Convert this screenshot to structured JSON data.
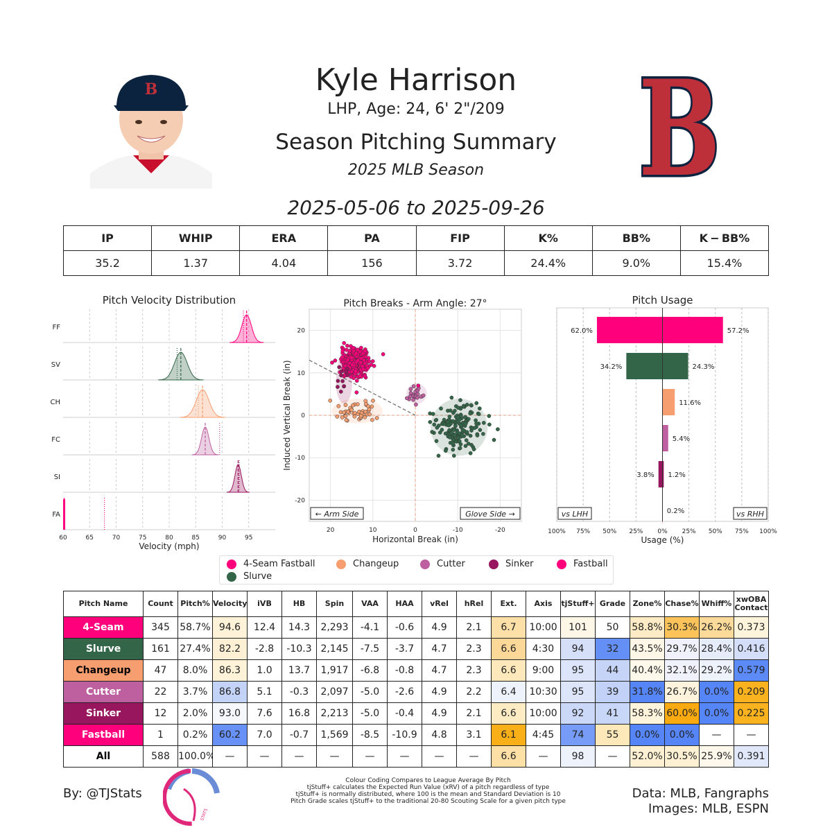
{
  "header": {
    "player_name": "Kyle Harrison",
    "player_info": "LHP, Age: 24, 6' 2\"/209",
    "title": "Season Pitching Summary",
    "season": "2025 MLB Season",
    "date_range": "2025-05-06 to 2025-09-26",
    "team_logo_letter": "B"
  },
  "colors": {
    "4-Seam": "#FF007D",
    "Slurve": "#336648",
    "Changeup": "#F79E70",
    "Cutter": "#BE5FA0",
    "Sinker": "#98165D",
    "Fastball": "#FF007D"
  },
  "season_stats": {
    "headers": [
      "IP",
      "WHIP",
      "ERA",
      "PA",
      "FIP",
      "K%",
      "BB%",
      "K − BB%"
    ],
    "values": [
      "35.2",
      "1.37",
      "4.04",
      "156",
      "3.72",
      "24.4%",
      "9.0%",
      "15.4%"
    ]
  },
  "chart_data": [
    {
      "type": "area",
      "title": "Pitch Velocity Distribution",
      "xlabel": "Velocity (mph)",
      "xticks": [
        "60",
        "65",
        "70",
        "75",
        "80",
        "85",
        "90",
        "95"
      ],
      "xlim": [
        60,
        100
      ],
      "rows": [
        {
          "label": "FF",
          "color": "#FF007D",
          "center": 94.6,
          "spread": 0.9,
          "league_avg": 94.0
        },
        {
          "label": "SV",
          "color": "#336648",
          "center": 82.2,
          "spread": 1.2,
          "league_avg": 81.5
        },
        {
          "label": "CH",
          "color": "#F79E70",
          "center": 86.3,
          "spread": 1.2,
          "league_avg": 85.5
        },
        {
          "label": "FC",
          "color": "#BE5FA0",
          "center": 86.8,
          "spread": 0.7,
          "league_avg": 89.5
        },
        {
          "label": "SI",
          "color": "#98165D",
          "center": 93.0,
          "spread": 0.6,
          "league_avg": 93.2
        },
        {
          "label": "FA",
          "color": "#FF007D",
          "center": 60.2,
          "spread": 0.2,
          "league_avg": 67.8
        }
      ]
    },
    {
      "type": "scatter",
      "title": "Pitch Breaks - Arm Angle: 27°",
      "xlabel": "Horizontal Break (in)",
      "ylabel": "Induced Vertical Break (in)",
      "xlim": [
        25,
        -25
      ],
      "ylim": [
        -25,
        25
      ],
      "xticks": [
        "20",
        "10",
        "0",
        "-10",
        "-20"
      ],
      "yticks": [
        "20",
        "10",
        "0",
        "-10",
        "-20"
      ],
      "arm_side_label": "← Arm Side",
      "glove_side_label": "Glove Side →",
      "clusters": [
        {
          "name": "4-Seam",
          "color": "#FF007D",
          "hb": 14.3,
          "ivb": 12.4,
          "n": 345,
          "sx": 1.6,
          "sy": 1.6
        },
        {
          "name": "Slurve",
          "color": "#336648",
          "hb": -10.3,
          "ivb": -2.8,
          "n": 161,
          "sx": 2.8,
          "sy": 2.8
        },
        {
          "name": "Changeup",
          "color": "#F79E70",
          "hb": 13.7,
          "ivb": 1.0,
          "n": 47,
          "sx": 2.5,
          "sy": 1.2
        },
        {
          "name": "Cutter",
          "color": "#BE5FA0",
          "hb": -0.3,
          "ivb": 5.1,
          "n": 22,
          "sx": 1.0,
          "sy": 1.0
        },
        {
          "name": "Sinker",
          "color": "#98165D",
          "hb": 16.8,
          "ivb": 7.6,
          "n": 12,
          "sx": 0.8,
          "sy": 2.0
        },
        {
          "name": "Fastball",
          "color": "#FF007D",
          "hb": -0.7,
          "ivb": 7.0,
          "n": 1,
          "sx": 0,
          "sy": 0
        }
      ]
    },
    {
      "type": "bar",
      "title": "Pitch Usage",
      "xlabel": "Usage (%)",
      "xticks": [
        "100%",
        "75%",
        "50%",
        "25%",
        "0%",
        "25%",
        "50%",
        "75%",
        "100%"
      ],
      "vs_lhh_label": "vs LHH",
      "vs_rhh_label": "vs RHH",
      "series": [
        {
          "name": "4-Seam",
          "color": "#FF007D",
          "lhh": 62.0,
          "rhh": 57.2,
          "lhh_label": "62.0%",
          "rhh_label": "57.2%"
        },
        {
          "name": "Slurve",
          "color": "#336648",
          "lhh": 34.2,
          "rhh": 24.3,
          "lhh_label": "34.2%",
          "rhh_label": "24.3%"
        },
        {
          "name": "Changeup",
          "color": "#F79E70",
          "lhh": 0,
          "rhh": 11.6,
          "lhh_label": "",
          "rhh_label": "11.6%"
        },
        {
          "name": "Cutter",
          "color": "#BE5FA0",
          "lhh": 0,
          "rhh": 5.4,
          "lhh_label": "",
          "rhh_label": "5.4%"
        },
        {
          "name": "Sinker",
          "color": "#98165D",
          "lhh": 3.8,
          "rhh": 1.2,
          "lhh_label": "3.8%",
          "rhh_label": "1.2%"
        },
        {
          "name": "Fastball",
          "color": "#FF007D",
          "lhh": 0,
          "rhh": 0.2,
          "lhh_label": "",
          "rhh_label": "0.2%"
        }
      ]
    }
  ],
  "legend": [
    {
      "label": "4-Seam Fastball",
      "color": "#FF007D"
    },
    {
      "label": "Changeup",
      "color": "#F79E70"
    },
    {
      "label": "Cutter",
      "color": "#BE5FA0"
    },
    {
      "label": "Sinker",
      "color": "#98165D"
    },
    {
      "label": "Fastball",
      "color": "#FF007D"
    },
    {
      "label": "Slurve",
      "color": "#336648"
    }
  ],
  "pitch_table": {
    "headers": [
      "Pitch Name",
      "Count",
      "Pitch%",
      "Velocity",
      "iVB",
      "HB",
      "Spin",
      "VAA",
      "HAA",
      "vRel",
      "hRel",
      "Ext.",
      "Axis",
      "tjStuff+",
      "Grade",
      "Zone%",
      "Chase%",
      "Whiff%",
      "xwOBA Contact"
    ],
    "rows": [
      {
        "name": "4-Seam",
        "name_bg": "#FF007D",
        "name_color": "#ffffff",
        "cells": [
          "345",
          "58.7%",
          "94.6",
          "12.4",
          "14.3",
          "2,293",
          "-4.1",
          "-0.6",
          "4.9",
          "2.1",
          "6.7",
          "10:00",
          "101",
          "50",
          "58.8%",
          "30.3%",
          "26.2%",
          "0.373"
        ],
        "bg": [
          "",
          "",
          "#FEF3D8",
          "",
          "",
          "",
          "",
          "",
          "",
          "",
          "#FCE0A8",
          "",
          "#FEF6E6",
          "",
          "#FDEBC5",
          "#FCC35A",
          "#FCDB9A",
          "#FEF4DC"
        ]
      },
      {
        "name": "Slurve",
        "name_bg": "#336648",
        "name_color": "#ffffff",
        "cells": [
          "161",
          "27.4%",
          "82.2",
          "-2.8",
          "-10.3",
          "2,145",
          "-7.5",
          "-3.7",
          "4.7",
          "2.3",
          "6.6",
          "4:30",
          "94",
          "32",
          "43.5%",
          "29.7%",
          "28.4%",
          "0.416"
        ],
        "bg": [
          "",
          "",
          "#FDF0D5",
          "",
          "",
          "",
          "",
          "",
          "",
          "",
          "#FCD898",
          "",
          "#D5E0F8",
          "#648FF7",
          "#FEF6E6",
          "#EFF2FB",
          "#E6ECFA",
          "#D4DEF8"
        ]
      },
      {
        "name": "Changeup",
        "name_bg": "#F79E70",
        "name_color": "#000000",
        "cells": [
          "47",
          "8.0%",
          "86.3",
          "1.0",
          "13.7",
          "1,917",
          "-6.8",
          "-0.8",
          "4.7",
          "2.3",
          "6.6",
          "9:00",
          "95",
          "44",
          "40.4%",
          "32.1%",
          "29.2%",
          "0.579"
        ],
        "bg": [
          "",
          "",
          "#FEF2D8",
          "",
          "",
          "",
          "",
          "",
          "",
          "",
          "#FDE8BB",
          "",
          "#DCE5F9",
          "#C6D5F7",
          "#FEF8EA",
          "#EFF2FB",
          "#EEF2FB",
          "#5C8AF7"
        ]
      },
      {
        "name": "Cutter",
        "name_bg": "#BE5FA0",
        "name_color": "#ffffff",
        "cells": [
          "22",
          "3.7%",
          "86.8",
          "5.1",
          "-0.3",
          "2,097",
          "-5.0",
          "-2.6",
          "4.9",
          "2.2",
          "6.4",
          "10:30",
          "95",
          "39",
          "31.8%",
          "26.7%",
          "0.0%",
          "0.209"
        ],
        "bg": [
          "",
          "",
          "#C3D3F7",
          "",
          "",
          "",
          "",
          "",
          "",
          "",
          "#EEF3FB",
          "",
          "#DCE5F9",
          "#C1D1F7",
          "#5585F6",
          "#FEF4DE",
          "#5585F6",
          "#FAB21F"
        ]
      },
      {
        "name": "Sinker",
        "name_bg": "#98165D",
        "name_color": "#ffffff",
        "cells": [
          "12",
          "2.0%",
          "93.0",
          "7.6",
          "16.8",
          "2,213",
          "-5.0",
          "-0.4",
          "4.9",
          "2.1",
          "6.6",
          "10:00",
          "92",
          "41",
          "58.3%",
          "60.0%",
          "0.0%",
          "0.225"
        ],
        "bg": [
          "",
          "",
          "#F6F7FB",
          "",
          "",
          "",
          "",
          "",
          "",
          "",
          "#FDEBC4",
          "",
          "#CBD8F7",
          "#C8D6F7",
          "#FEF4DC",
          "#F9AA11",
          "#5585F6",
          "#FAB21F"
        ]
      },
      {
        "name": "Fastball",
        "name_bg": "#FF007D",
        "name_color": "#ffffff",
        "cells": [
          "1",
          "0.2%",
          "60.2",
          "7.0",
          "-0.7",
          "1,569",
          "-8.5",
          "-10.9",
          "4.8",
          "3.1",
          "6.1",
          "4:45",
          "74",
          "55",
          "0.0%",
          "0.0%",
          "—",
          "—"
        ],
        "bg": [
          "",
          "",
          "#6891F7",
          "",
          "",
          "",
          "",
          "",
          "",
          "",
          "#F9AF18",
          "",
          "#779CF7",
          "#FDE8BA",
          "#5585F6",
          "#5585F6",
          "",
          ""
        ]
      },
      {
        "name": "All",
        "name_bg": "#ffffff",
        "name_color": "#000000",
        "cells": [
          "588",
          "100.0%",
          "—",
          "—",
          "—",
          "—",
          "—",
          "—",
          "—",
          "—",
          "6.6",
          "—",
          "98",
          "—",
          "52.0%",
          "30.5%",
          "25.9%",
          "0.391"
        ],
        "bg": [
          "",
          "",
          "",
          "",
          "",
          "",
          "",
          "",
          "",
          "",
          "#FCE0A6",
          "",
          "#EEF2FB",
          "",
          "#FEF0D2",
          "#FDF0D3",
          "#FEF8EC",
          "#E1E8F9"
        ]
      }
    ]
  },
  "footer": {
    "credit": "By: @TJStats",
    "notes": [
      "Colour Coding Compares to League Average By Pitch",
      "tjStuff+ calculates the Expected Run Value (xRV) of a pitch regardless of type",
      "tjStuff+ is normally distributed, where 100 is the mean and Standard Deviation is 10",
      "Pitch Grade scales tjStuff+ to the traditional 20-80 Scouting Scale for a given pitch type"
    ],
    "data_source": "Data: MLB, Fangraphs",
    "image_source": "Images: MLB, ESPN",
    "logo_text": "STATS"
  }
}
